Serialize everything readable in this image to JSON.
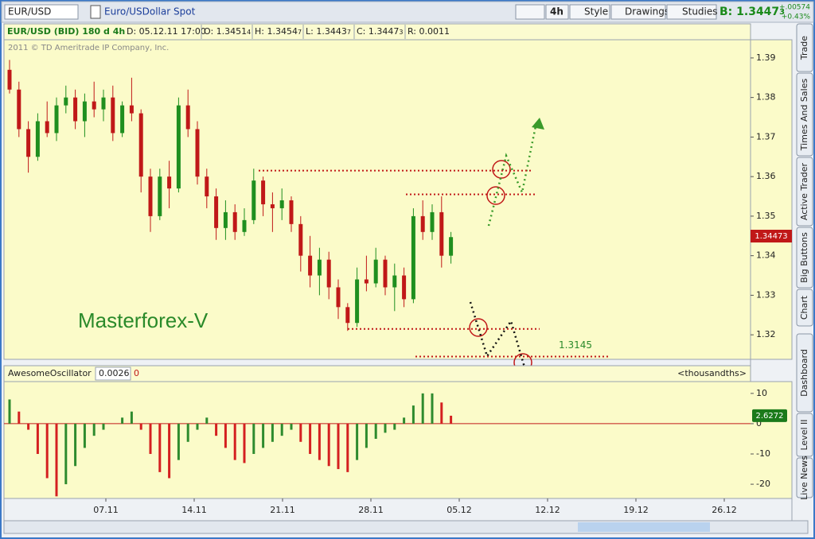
{
  "toolbar": {
    "symbol": "EUR/USD",
    "description": "Euro/USDollar Spot",
    "buttons": [
      "4h",
      "Style",
      "Drawings",
      "Studies"
    ],
    "bid": {
      "main": "B: 1.3447",
      "sub": "3"
    },
    "change": "+.00574",
    "change_pct": "+0.43%"
  },
  "header": {
    "title": "EUR/USD (BID) 180 d 4h",
    "date": "D: 05.12.11 17:00",
    "fields": [
      {
        "main": "O: 1.3451",
        "sub": "4"
      },
      {
        "main": "H: 1.3454",
        "sub": "7"
      },
      {
        "main": "L: 1.3443",
        "sub": "7"
      },
      {
        "main": "C: 1.3447",
        "sub": "3"
      },
      {
        "main": "R: 0.0011",
        "sub": ""
      }
    ]
  },
  "watermark": "2011 © TD Ameritrade IP Company, Inc.",
  "annotation": "Masterforex-V",
  "price_tag": "1.34473",
  "chart_data": [
    {
      "type": "candlestick",
      "open": [
        1.387,
        1.382,
        1.372,
        1.365,
        1.374,
        1.371,
        1.378,
        1.38,
        1.374,
        1.379,
        1.377,
        1.38,
        1.371,
        1.378,
        1.376,
        1.36,
        1.35,
        1.36,
        1.357,
        1.378,
        1.372,
        1.36,
        1.355,
        1.347,
        1.351,
        1.346,
        1.349,
        1.359,
        1.353,
        1.352,
        1.354,
        1.348,
        1.34,
        1.335,
        1.339,
        1.332,
        1.327,
        1.323,
        1.334,
        1.333,
        1.339,
        1.332,
        1.335,
        1.329,
        1.35,
        1.346,
        1.351,
        1.34
      ],
      "high": [
        1.3895,
        1.384,
        1.374,
        1.376,
        1.379,
        1.38,
        1.383,
        1.382,
        1.381,
        1.384,
        1.382,
        1.383,
        1.379,
        1.385,
        1.377,
        1.362,
        1.362,
        1.364,
        1.38,
        1.382,
        1.374,
        1.362,
        1.357,
        1.354,
        1.353,
        1.352,
        1.362,
        1.36,
        1.356,
        1.357,
        1.355,
        1.35,
        1.345,
        1.342,
        1.341,
        1.334,
        1.328,
        1.337,
        1.34,
        1.342,
        1.34,
        1.338,
        1.337,
        1.352,
        1.354,
        1.353,
        1.355,
        1.346
      ],
      "low": [
        1.381,
        1.37,
        1.361,
        1.364,
        1.37,
        1.369,
        1.376,
        1.372,
        1.37,
        1.375,
        1.374,
        1.369,
        1.37,
        1.374,
        1.356,
        1.346,
        1.349,
        1.352,
        1.356,
        1.37,
        1.358,
        1.352,
        1.344,
        1.344,
        1.344,
        1.345,
        1.348,
        1.35,
        1.346,
        1.349,
        1.346,
        1.336,
        1.332,
        1.33,
        1.329,
        1.324,
        1.321,
        1.322,
        1.331,
        1.332,
        1.33,
        1.326,
        1.327,
        1.328,
        1.344,
        1.344,
        1.337,
        1.338
      ],
      "close": [
        1.382,
        1.372,
        1.365,
        1.374,
        1.371,
        1.378,
        1.38,
        1.374,
        1.379,
        1.377,
        1.38,
        1.371,
        1.378,
        1.376,
        1.36,
        1.35,
        1.36,
        1.357,
        1.378,
        1.372,
        1.36,
        1.355,
        1.347,
        1.351,
        1.346,
        1.349,
        1.359,
        1.353,
        1.352,
        1.354,
        1.348,
        1.34,
        1.335,
        1.339,
        1.332,
        1.327,
        1.323,
        1.334,
        1.333,
        1.339,
        1.332,
        1.335,
        1.329,
        1.35,
        1.346,
        1.351,
        1.34,
        1.3447
      ],
      "up_color": "#1f8f1f",
      "down_color": "#c01818",
      "ylim": [
        1.3138,
        1.3946
      ],
      "yticks": [
        1.32,
        1.33,
        1.34,
        1.35,
        1.36,
        1.37,
        1.38,
        1.39
      ],
      "levels": [
        1.3615,
        1.3555,
        1.3215,
        1.3145
      ],
      "level_color": "#c01818",
      "xtick_labels": [
        "07.11",
        "14.11",
        "21.11",
        "28.11",
        "05.12",
        "12.12",
        "19.12",
        "26.12"
      ]
    },
    {
      "type": "bar",
      "title": "AwesomeOscillator",
      "value_text": "0.0026",
      "offset_text": "0",
      "unit": "<thousandths>",
      "values": [
        8,
        4,
        -2,
        -10,
        -18,
        -24,
        -20,
        -14,
        -8,
        -4,
        -2,
        0,
        2,
        4,
        -2,
        -10,
        -16,
        -18,
        -12,
        -6,
        -2,
        2,
        -4,
        -8,
        -12,
        -13,
        -10,
        -8,
        -6,
        -4,
        -2,
        -6,
        -10,
        -12,
        -14,
        -15,
        -16,
        -12,
        -8,
        -5,
        -3,
        -2,
        2,
        6,
        10,
        10,
        7,
        2.6272
      ],
      "up_color": "#2e8b2e",
      "down_color": "#d42020",
      "ylim": [
        -24.7,
        13.9
      ],
      "yticks": [
        10,
        0,
        -10,
        -20
      ]
    }
  ],
  "side_tabs": [
    "Trade",
    "Times And Sales",
    "Active Trader",
    "Big Buttons",
    "Chart",
    "Dashboard",
    "Level II",
    "Live News"
  ]
}
